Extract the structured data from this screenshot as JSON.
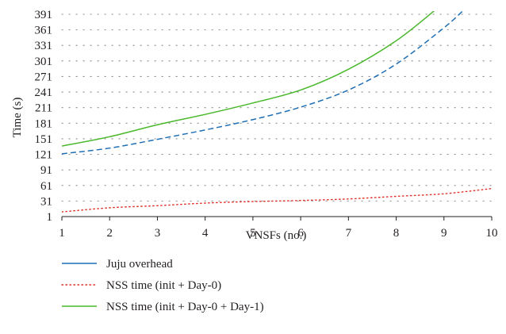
{
  "chart_data": {
    "type": "line",
    "title": "",
    "xlabel": "VNSFs (no.)",
    "ylabel": "Time (s)",
    "xlim": [
      1,
      10
    ],
    "ylim": [
      1,
      391
    ],
    "x_ticks": [
      1,
      2,
      3,
      4,
      5,
      6,
      7,
      8,
      9,
      10
    ],
    "y_ticks": [
      1,
      31,
      61,
      91,
      121,
      151,
      181,
      211,
      241,
      271,
      301,
      331,
      361,
      391
    ],
    "grid": "horizontal dotted",
    "legend_position": "bottom",
    "series": [
      {
        "name": "Juju overhead",
        "color": "#1f6fb4",
        "style": "dashed",
        "x": [
          1,
          2,
          3,
          4,
          5,
          6,
          7,
          8,
          9,
          9.4
        ],
        "y": [
          122,
          133,
          150,
          168,
          188,
          212,
          245,
          295,
          365,
          398
        ]
      },
      {
        "name": "NSS time (init + Day-0)",
        "color": "#e0312b",
        "style": "dotted",
        "x": [
          1,
          2,
          3,
          4,
          5,
          6,
          7,
          8,
          9,
          10
        ],
        "y": [
          10,
          18,
          22,
          27,
          30,
          32,
          35,
          40,
          45,
          55
        ]
      },
      {
        "name": "NSS time (init + Day-0 + Day-1)",
        "color": "#49b82b",
        "style": "solid",
        "x": [
          1,
          2,
          3,
          4,
          5,
          6,
          7,
          8,
          8.8
        ],
        "y": [
          137,
          155,
          178,
          198,
          220,
          245,
          285,
          340,
          398
        ]
      }
    ]
  }
}
